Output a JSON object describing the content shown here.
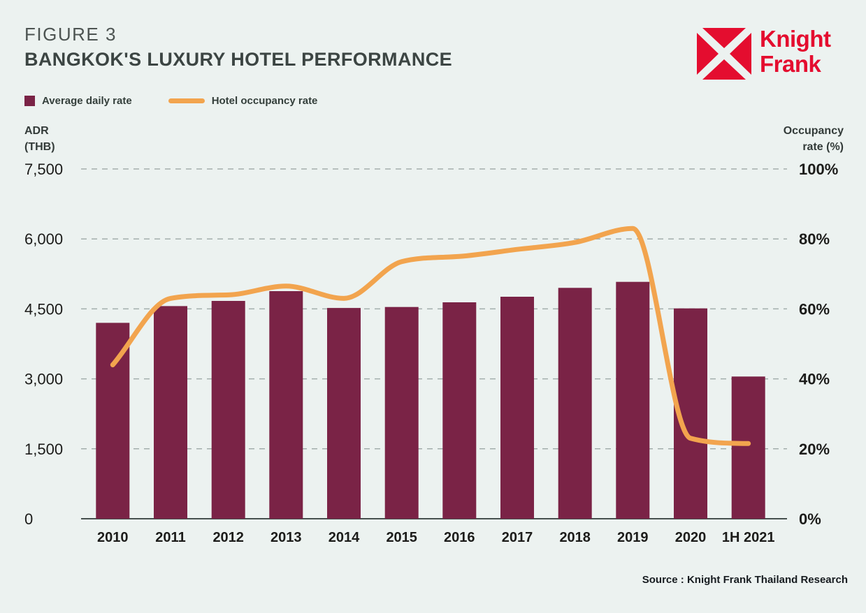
{
  "header": {
    "figure_label": "FIGURE 3",
    "title": "BANGKOK'S LUXURY HOTEL PERFORMANCE"
  },
  "logo": {
    "brand_line1": "Knight",
    "brand_line2": "Frank",
    "brand_color": "#e40d2f"
  },
  "legend": {
    "adr_label": "Average daily rate",
    "occupancy_label": "Hotel occupancy rate"
  },
  "axis_titles": {
    "left_line1": "ADR",
    "left_line2": "(THB)",
    "right_line1": "Occupancy",
    "right_line2": "rate (%)"
  },
  "source": "Source : Knight Frank Thailand Research",
  "colors": {
    "background": "#ecf2f0",
    "bar": "#7a2346",
    "line": "#f2a44e",
    "grid": "#a3aeac",
    "axis": "#46504e",
    "tick_text": "#1c1c1a"
  },
  "chart_data": {
    "type": "combo",
    "title": "Bangkok's luxury hotel performance",
    "categories": [
      "2010",
      "2011",
      "2012",
      "2013",
      "2014",
      "2015",
      "2016",
      "2017",
      "2018",
      "2019",
      "2020",
      "1H 2021"
    ],
    "series": [
      {
        "name": "Average daily rate",
        "type": "bar",
        "axis": "left",
        "unit": "THB",
        "values": [
          4200,
          4560,
          4670,
          4880,
          4520,
          4540,
          4640,
          4760,
          4950,
          5080,
          4510,
          3050
        ]
      },
      {
        "name": "Hotel occupancy rate",
        "type": "line",
        "axis": "right",
        "unit": "%",
        "values": [
          44,
          63,
          64,
          66.5,
          63,
          73.5,
          75,
          77,
          79,
          83,
          23,
          21.5
        ]
      }
    ],
    "left_axis": {
      "title": "ADR (THB)",
      "min": 0,
      "max": 7500,
      "ticks": [
        "7,500",
        "6,000",
        "4,500",
        "3,000",
        "1,500",
        "0"
      ]
    },
    "right_axis": {
      "title": "Occupancy rate (%)",
      "min": 0,
      "max": 100,
      "ticks": [
        "100%",
        "80%",
        "60%",
        "40%",
        "20%",
        "0%"
      ]
    },
    "grid": "horizontal-dashed",
    "legend_position": "top-left"
  }
}
